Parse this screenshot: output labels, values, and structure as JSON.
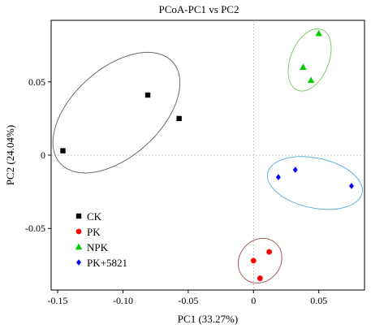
{
  "chart_data": {
    "type": "scatter",
    "title": "PCoA-PC1 vs PC2",
    "xlabel": "PC1 (33.27%)",
    "ylabel": "PC2 (24.04%)",
    "xlim": [
      -0.155,
      0.085
    ],
    "ylim": [
      -0.092,
      0.092
    ],
    "x_ticks": [
      -0.15,
      -0.1,
      -0.05,
      0,
      0.05
    ],
    "x_tick_labels": [
      "-0.15",
      "-0.10",
      "-0.05",
      "0",
      "0.05"
    ],
    "y_ticks": [
      -0.05,
      0,
      0.05
    ],
    "y_tick_labels": [
      "-0.05",
      "0",
      "0.05"
    ],
    "grid": false,
    "zero_lines": true,
    "legend_position": "bottom-left",
    "series": [
      {
        "name": "CK",
        "marker": "square",
        "color": "#000000",
        "ellipse_color": "#6b6b6b",
        "points": [
          [
            -0.146,
            0.003
          ],
          [
            -0.081,
            0.041
          ],
          [
            -0.057,
            0.025
          ]
        ],
        "ellipse": {
          "cx": -0.105,
          "cy": 0.029,
          "rx": 0.058,
          "ry": 0.03,
          "angle": -42
        }
      },
      {
        "name": "PK",
        "marker": "circle",
        "color": "#ff0000",
        "ellipse_color": "#a85a58",
        "points": [
          [
            0.0,
            -0.072
          ],
          [
            0.012,
            -0.066
          ],
          [
            0.005,
            -0.084
          ]
        ],
        "ellipse": {
          "cx": 0.005,
          "cy": -0.072,
          "rx": 0.018,
          "ry": 0.014,
          "angle": -50
        }
      },
      {
        "name": "NPK",
        "marker": "triangle",
        "color": "#00cc00",
        "ellipse_color": "#7ecf6a",
        "points": [
          [
            0.05,
            0.083
          ],
          [
            0.038,
            0.06
          ],
          [
            0.044,
            0.051
          ]
        ],
        "ellipse": {
          "cx": 0.043,
          "cy": 0.065,
          "rx": 0.025,
          "ry": 0.013,
          "angle": -68
        }
      },
      {
        "name": "PK+5821",
        "marker": "diamond",
        "color": "#0000ff",
        "ellipse_color": "#5fb3e0",
        "points": [
          [
            0.019,
            -0.015
          ],
          [
            0.032,
            -0.01
          ],
          [
            0.075,
            -0.021
          ]
        ],
        "ellipse": {
          "cx": 0.047,
          "cy": -0.019,
          "rx": 0.037,
          "ry": 0.017,
          "angle": 12
        }
      }
    ]
  }
}
